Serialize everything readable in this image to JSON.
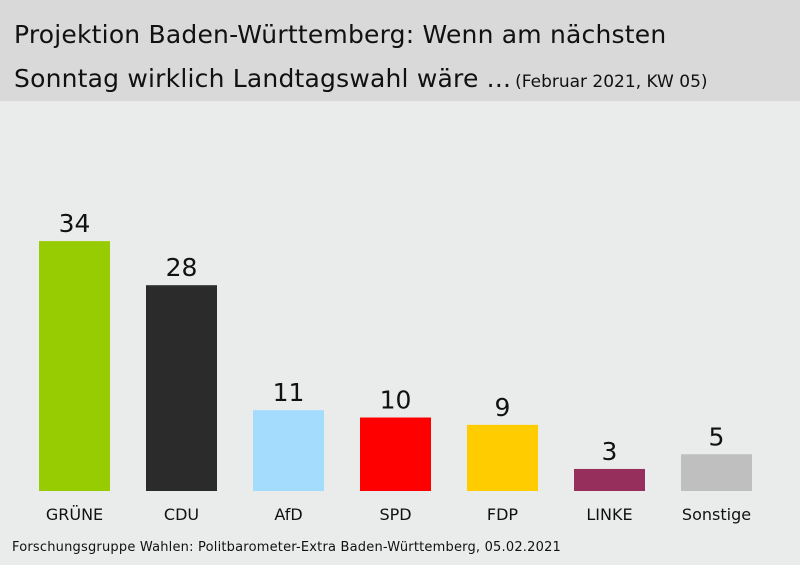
{
  "title_line_1": "Projektion Baden-Württemberg: Wenn am nächsten",
  "title_line_2": "Sonntag wirklich Landtagswahl wäre ...",
  "subtitle": "(Februar 2021, KW 05)",
  "source": "Forschungsgruppe Wahlen: Politbarometer-Extra Baden-Württemberg, 05.02.2021",
  "chart_data": {
    "type": "bar",
    "title": "Projektion Baden-Württemberg: Wenn am nächsten Sonntag wirklich Landtagswahl wäre ...",
    "subtitle": "(Februar 2021, KW 05)",
    "categories": [
      "GRÜNE",
      "CDU",
      "AfD",
      "SPD",
      "FDP",
      "LINKE",
      "Sonstige"
    ],
    "values": [
      34,
      28,
      11,
      10,
      9,
      3,
      5
    ],
    "colors": [
      "#98cc02",
      "#2b2b2b",
      "#a3dcfd",
      "#ff0000",
      "#ffcc00",
      "#962f5c",
      "#bfbfbf"
    ],
    "data_labels": true,
    "grid": false,
    "legend": "none",
    "xlabel": "",
    "ylabel": ""
  }
}
